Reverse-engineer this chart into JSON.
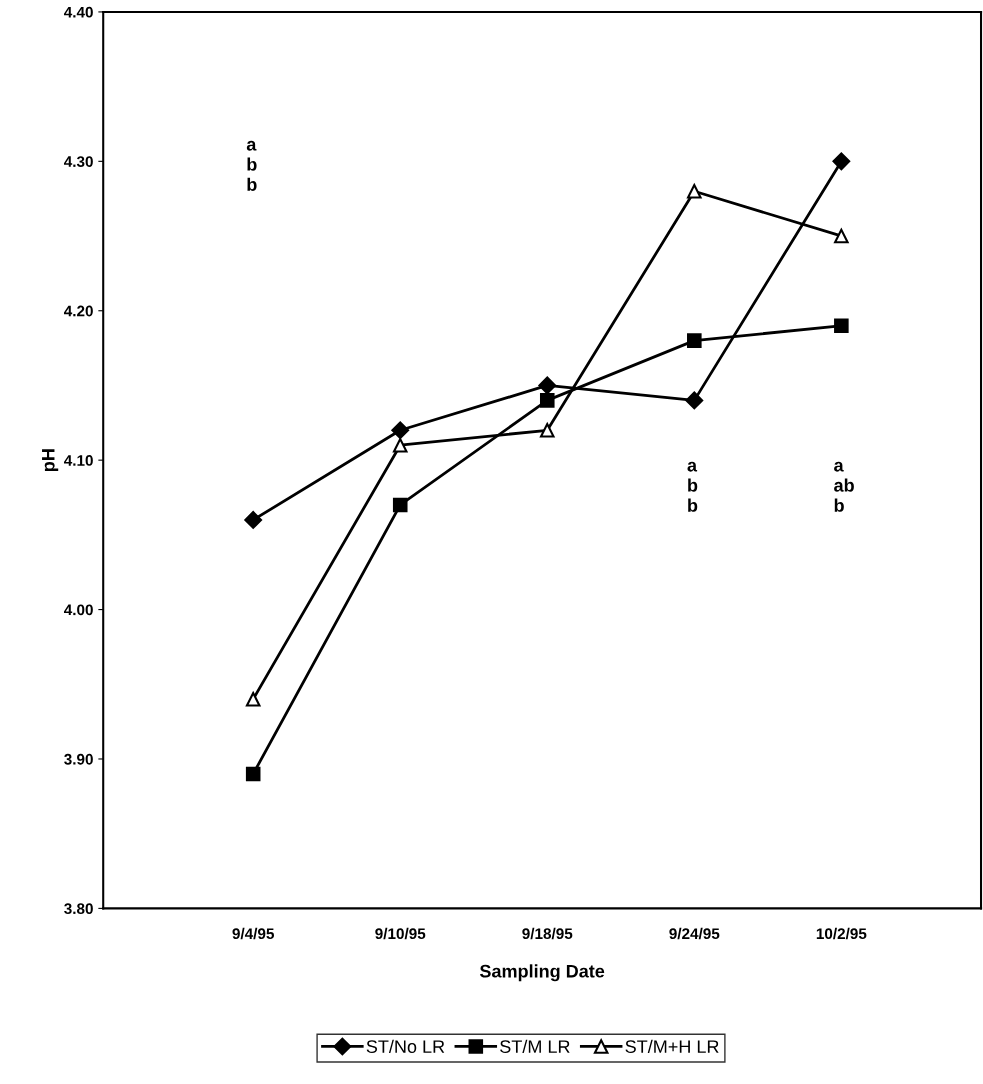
{
  "chart_data": {
    "type": "line",
    "xlabel": "Sampling Date",
    "ylabel": "pH",
    "categories": [
      "9/4/95",
      "9/10/95",
      "9/18/95",
      "9/24/95",
      "10/2/95"
    ],
    "series": [
      {
        "name": "ST/No LR",
        "color": "#000000",
        "marker": "diamond",
        "values": [
          4.06,
          4.12,
          4.15,
          4.14,
          4.3
        ]
      },
      {
        "name": "ST/M LR",
        "color": "#000000",
        "marker": "square",
        "values": [
          3.89,
          4.07,
          4.14,
          4.18,
          4.19
        ]
      },
      {
        "name": "ST/M+H LR",
        "color": "#000000",
        "marker": "triangle",
        "values": [
          3.94,
          4.11,
          4.12,
          4.28,
          4.25
        ]
      }
    ],
    "ylim": [
      3.8,
      4.4
    ],
    "yticks": [
      {
        "value": 3.8,
        "label": "3.80"
      },
      {
        "value": 3.9,
        "label": "3.90"
      },
      {
        "value": 4.0,
        "label": "4.00"
      },
      {
        "value": 4.1,
        "label": "4.10"
      },
      {
        "value": 4.2,
        "label": "4.20"
      },
      {
        "value": 4.3,
        "label": "4.30"
      },
      {
        "value": 4.4,
        "label": "4.40"
      }
    ],
    "annotations": [
      "a\nb\nb",
      "a\nb\nb",
      "a\nab\nb"
    ],
    "grid": false,
    "legend": "bottom",
    "line_style": "solid"
  }
}
